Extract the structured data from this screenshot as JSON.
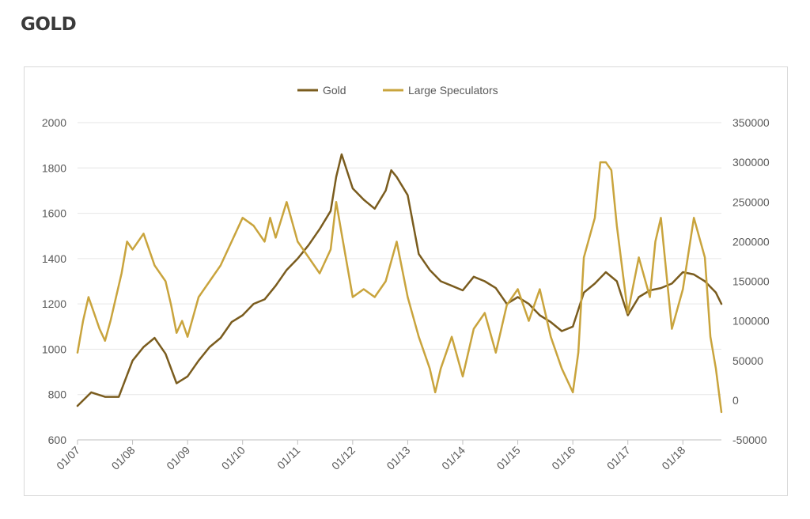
{
  "page": {
    "title": "GOLD"
  },
  "colors": {
    "gold": "#7a5c1e",
    "large_speculators": "#c9a43d",
    "grid": "#e6e6e6",
    "axis": "#bfbfbf"
  },
  "chart_data": {
    "type": "line",
    "title": "",
    "xlabel": "",
    "ylabel": "",
    "x_tick_labels": [
      "01/07",
      "01/08",
      "01/09",
      "01/10",
      "01/11",
      "01/12",
      "01/13",
      "01/14",
      "01/15",
      "01/16",
      "01/17",
      "01/18"
    ],
    "x_range": [
      2007.0,
      2018.7
    ],
    "y_left": {
      "range": [
        600,
        2000
      ],
      "ticks": [
        "600",
        "800",
        "1000",
        "1200",
        "1400",
        "1600",
        "1800",
        "2000"
      ]
    },
    "y_right": {
      "range": [
        -50000,
        350000
      ],
      "ticks": [
        "-50000",
        "0",
        "50000",
        "100000",
        "150000",
        "200000",
        "250000",
        "300000",
        "350000"
      ]
    },
    "grid": "horizontal",
    "legend": {
      "position": "top-center"
    },
    "series": [
      {
        "name": "Gold",
        "axis": "left",
        "x": [
          2007.0,
          2007.25,
          2007.5,
          2007.75,
          2008.0,
          2008.2,
          2008.4,
          2008.6,
          2008.8,
          2009.0,
          2009.2,
          2009.4,
          2009.6,
          2009.8,
          2010.0,
          2010.2,
          2010.4,
          2010.6,
          2010.8,
          2011.0,
          2011.2,
          2011.4,
          2011.6,
          2011.7,
          2011.8,
          2012.0,
          2012.2,
          2012.4,
          2012.6,
          2012.7,
          2012.8,
          2013.0,
          2013.2,
          2013.4,
          2013.6,
          2013.8,
          2014.0,
          2014.2,
          2014.4,
          2014.6,
          2014.8,
          2015.0,
          2015.2,
          2015.4,
          2015.6,
          2015.8,
          2016.0,
          2016.2,
          2016.4,
          2016.6,
          2016.8,
          2017.0,
          2017.2,
          2017.4,
          2017.6,
          2017.8,
          2018.0,
          2018.2,
          2018.4,
          2018.6,
          2018.7
        ],
        "values": [
          750,
          810,
          790,
          790,
          950,
          1010,
          1050,
          980,
          850,
          880,
          950,
          1010,
          1050,
          1120,
          1150,
          1200,
          1220,
          1280,
          1350,
          1400,
          1460,
          1530,
          1610,
          1760,
          1860,
          1710,
          1660,
          1620,
          1700,
          1790,
          1760,
          1680,
          1420,
          1350,
          1300,
          1280,
          1260,
          1320,
          1300,
          1270,
          1200,
          1230,
          1200,
          1150,
          1120,
          1080,
          1100,
          1250,
          1290,
          1340,
          1300,
          1150,
          1230,
          1260,
          1270,
          1290,
          1340,
          1330,
          1300,
          1250,
          1200
        ]
      },
      {
        "name": "Large Speculators",
        "axis": "right",
        "x": [
          2007.0,
          2007.1,
          2007.2,
          2007.3,
          2007.4,
          2007.5,
          2007.6,
          2007.7,
          2007.8,
          2007.9,
          2008.0,
          2008.2,
          2008.4,
          2008.6,
          2008.7,
          2008.8,
          2008.9,
          2009.0,
          2009.2,
          2009.4,
          2009.6,
          2009.8,
          2010.0,
          2010.2,
          2010.4,
          2010.5,
          2010.6,
          2010.8,
          2011.0,
          2011.2,
          2011.4,
          2011.6,
          2011.7,
          2011.8,
          2012.0,
          2012.2,
          2012.4,
          2012.6,
          2012.8,
          2013.0,
          2013.2,
          2013.4,
          2013.5,
          2013.6,
          2013.8,
          2014.0,
          2014.2,
          2014.4,
          2014.6,
          2014.8,
          2015.0,
          2015.2,
          2015.4,
          2015.6,
          2015.8,
          2016.0,
          2016.1,
          2016.2,
          2016.4,
          2016.5,
          2016.6,
          2016.7,
          2016.8,
          2017.0,
          2017.2,
          2017.4,
          2017.5,
          2017.6,
          2017.8,
          2018.0,
          2018.2,
          2018.4,
          2018.5,
          2018.6,
          2018.7
        ],
        "values": [
          60000,
          100000,
          130000,
          110000,
          90000,
          75000,
          100000,
          130000,
          160000,
          200000,
          190000,
          210000,
          170000,
          150000,
          120000,
          85000,
          100000,
          80000,
          130000,
          150000,
          170000,
          200000,
          230000,
          220000,
          200000,
          230000,
          205000,
          250000,
          200000,
          180000,
          160000,
          190000,
          250000,
          210000,
          130000,
          140000,
          130000,
          150000,
          200000,
          130000,
          80000,
          40000,
          10000,
          40000,
          80000,
          30000,
          90000,
          110000,
          60000,
          120000,
          140000,
          100000,
          140000,
          80000,
          40000,
          10000,
          60000,
          180000,
          230000,
          300000,
          300000,
          290000,
          220000,
          110000,
          180000,
          130000,
          200000,
          230000,
          90000,
          140000,
          230000,
          180000,
          80000,
          40000,
          -15000
        ]
      }
    ]
  }
}
